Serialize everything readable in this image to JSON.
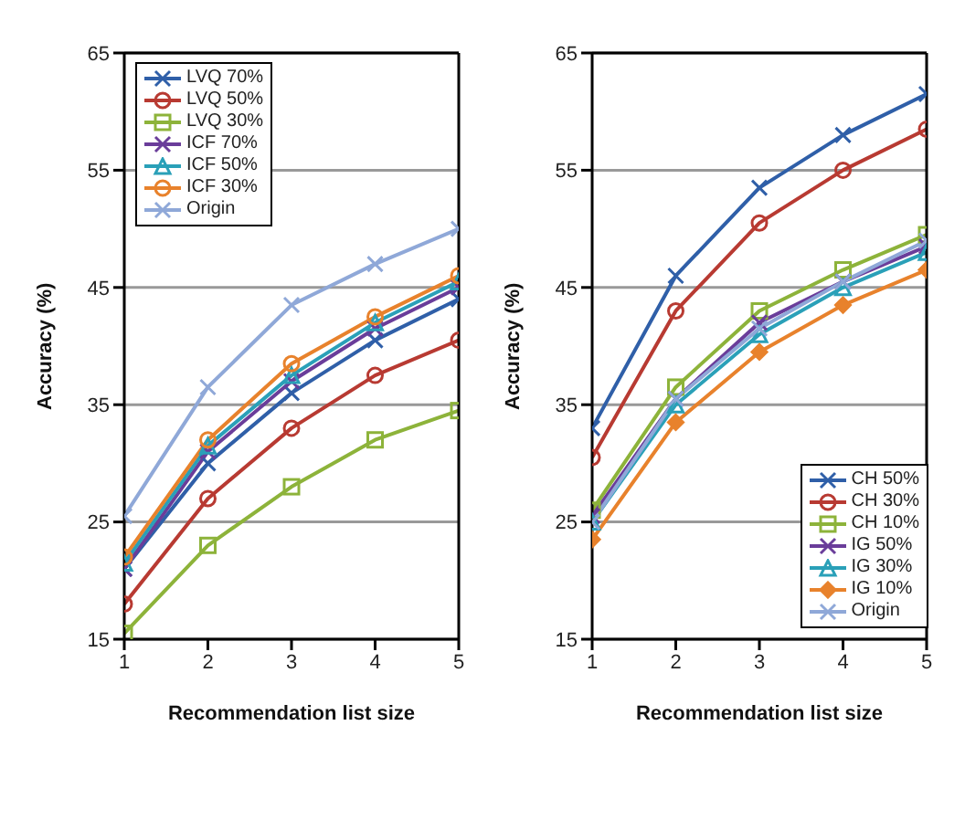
{
  "chart_data": [
    {
      "type": "line",
      "xlabel": "Recommendation list size",
      "ylabel": "Accuracy (%)",
      "x": [
        1,
        2,
        3,
        4,
        5
      ],
      "xlim": [
        1,
        5
      ],
      "xticks": [
        1,
        2,
        3,
        4,
        5
      ],
      "ylim": [
        15,
        65
      ],
      "yticks": [
        15,
        25,
        35,
        45,
        55,
        65
      ],
      "grid": "y",
      "legend": "top left",
      "series": [
        {
          "name": "LVQ 70%",
          "color": "#2f5fa8",
          "marker": "cross",
          "values": [
            21,
            30,
            36,
            40.5,
            44
          ]
        },
        {
          "name": "LVQ 50%",
          "color": "#b83a32",
          "marker": "circle",
          "values": [
            18,
            27,
            33,
            37.5,
            40.5
          ]
        },
        {
          "name": "LVQ 30%",
          "color": "#8db33a",
          "marker": "square",
          "values": [
            15.5,
            23,
            28,
            32,
            34.5
          ]
        },
        {
          "name": "ICF 70%",
          "color": "#6a3d9a",
          "marker": "cross",
          "values": [
            21,
            31,
            37,
            41.5,
            45
          ]
        },
        {
          "name": "ICF 50%",
          "color": "#2aa0b8",
          "marker": "triangle",
          "values": [
            21.5,
            31.5,
            37.5,
            42,
            45.5
          ]
        },
        {
          "name": "ICF 30%",
          "color": "#e8822c",
          "marker": "circle",
          "values": [
            22,
            32,
            38.5,
            42.5,
            46
          ]
        },
        {
          "name": "Origin",
          "color": "#8fa8d8",
          "marker": "cross",
          "values": [
            25.5,
            36.5,
            43.5,
            47,
            50
          ]
        }
      ]
    },
    {
      "type": "line",
      "xlabel": "Recommendation list size",
      "ylabel": "Accuracy (%)",
      "x": [
        1,
        2,
        3,
        4,
        5
      ],
      "xlim": [
        1,
        5
      ],
      "xticks": [
        1,
        2,
        3,
        4,
        5
      ],
      "ylim": [
        15,
        65
      ],
      "yticks": [
        15,
        25,
        35,
        45,
        55,
        65
      ],
      "grid": "y",
      "legend": "bottom right",
      "series": [
        {
          "name": "CH 50%",
          "color": "#2f5fa8",
          "marker": "cross",
          "values": [
            33,
            46,
            53.5,
            58,
            61.5
          ]
        },
        {
          "name": "CH 30%",
          "color": "#b83a32",
          "marker": "circle",
          "values": [
            30.5,
            43,
            50.5,
            55,
            58.5
          ]
        },
        {
          "name": "CH 10%",
          "color": "#8db33a",
          "marker": "square",
          "values": [
            26,
            36.5,
            43,
            46.5,
            49.5
          ]
        },
        {
          "name": "IG 50%",
          "color": "#6a3d9a",
          "marker": "cross",
          "values": [
            25.5,
            35.5,
            42,
            45.5,
            48.5
          ]
        },
        {
          "name": "IG 30%",
          "color": "#2aa0b8",
          "marker": "triangle",
          "values": [
            25,
            35,
            41,
            45,
            48
          ]
        },
        {
          "name": "IG 10%",
          "color": "#e8822c",
          "marker": "diamond",
          "values": [
            23.5,
            33.5,
            39.5,
            43.5,
            46.5
          ]
        },
        {
          "name": "Origin",
          "color": "#8fa8d8",
          "marker": "cross",
          "values": [
            25,
            35.5,
            41.5,
            45.5,
            49
          ]
        }
      ]
    }
  ]
}
